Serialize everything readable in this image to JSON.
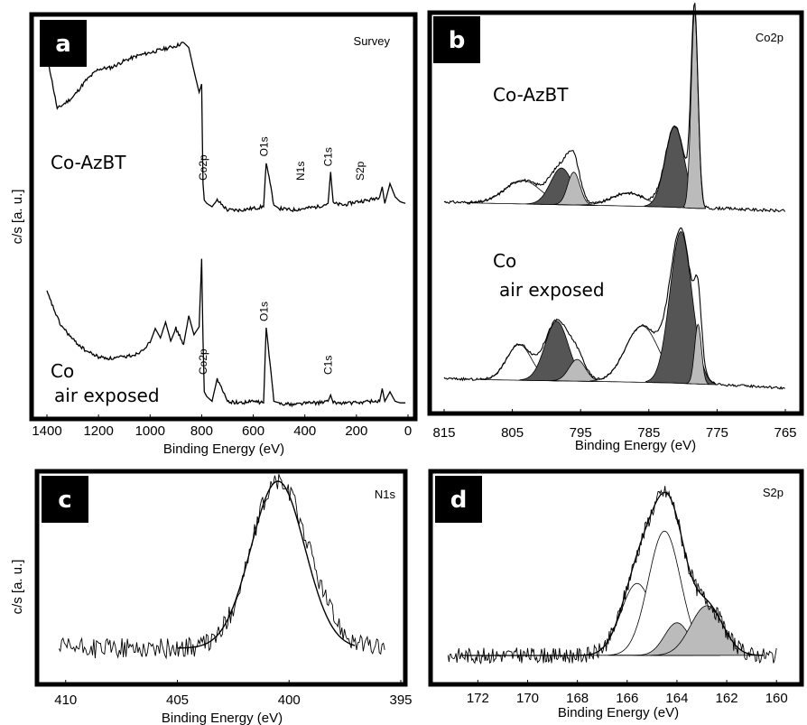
{
  "colors": {
    "frame": "#000000",
    "badge": "#000000",
    "dark_fill": "#555555",
    "light_fill": "#bbbbbb"
  },
  "chart_data": [
    {
      "panel": "a",
      "type": "line",
      "title": "Survey",
      "xlabel": "Binding Energy (eV)",
      "ylabel": "c/s [a. u.]",
      "xlim": [
        1400,
        0
      ],
      "xticks": [
        "1400",
        "1200",
        "1000",
        "800",
        "600",
        "400",
        "200",
        "0"
      ],
      "series": [
        {
          "name": "Co-AzBT",
          "x": [
            1400,
            1360,
            1300,
            1250,
            1200,
            1150,
            1100,
            1050,
            1000,
            950,
            900,
            870,
            850,
            830,
            810,
            800,
            795,
            790,
            780,
            760,
            740,
            700,
            650,
            600,
            560,
            550,
            520,
            500,
            450,
            400,
            350,
            310,
            300,
            290,
            250,
            200,
            150,
            110,
            100,
            90,
            70,
            50,
            30,
            10
          ],
          "y": [
            98,
            65,
            72,
            82,
            89,
            90,
            94,
            97,
            99,
            101,
            103,
            105,
            102,
            88,
            75,
            80,
            20,
            10,
            8,
            6,
            10,
            4,
            4,
            5,
            6,
            33,
            7,
            5,
            4,
            5,
            6,
            8,
            27,
            8,
            7,
            9,
            10,
            12,
            18,
            8,
            20,
            12,
            9,
            8
          ]
        },
        {
          "name": "Co\nair exposed",
          "x": [
            1400,
            1350,
            1300,
            1250,
            1200,
            1150,
            1100,
            1050,
            1000,
            980,
            960,
            940,
            920,
            900,
            870,
            850,
            830,
            810,
            800,
            795,
            790,
            780,
            760,
            740,
            700,
            650,
            600,
            560,
            550,
            520,
            500,
            450,
            400,
            350,
            310,
            300,
            290,
            250,
            200,
            150,
            110,
            100,
            90,
            70,
            50,
            30,
            10
          ],
          "y": [
            75,
            55,
            45,
            38,
            34,
            33,
            34,
            36,
            43,
            52,
            46,
            56,
            44,
            52,
            42,
            60,
            48,
            53,
            96,
            45,
            12,
            9,
            6,
            20,
            6,
            5,
            6,
            5,
            53,
            6,
            5,
            4,
            5,
            5,
            6,
            10,
            5,
            5,
            5,
            6,
            6,
            14,
            6,
            12,
            6,
            5,
            5
          ]
        }
      ],
      "peak_labels": [
        {
          "text": "Co2p",
          "x": 780,
          "series": 0
        },
        {
          "text": "O1s",
          "x": 545,
          "series": 0
        },
        {
          "text": "N1s",
          "x": 402,
          "series": 0
        },
        {
          "text": "C1s",
          "x": 296,
          "series": 0
        },
        {
          "text": "S2p",
          "x": 172,
          "series": 0
        },
        {
          "text": "Co2p",
          "x": 780,
          "series": 1
        },
        {
          "text": "O1s",
          "x": 545,
          "series": 1
        },
        {
          "text": "C1s",
          "x": 296,
          "series": 1
        }
      ]
    },
    {
      "panel": "b",
      "type": "line",
      "title": "Co2p",
      "xlabel": "Binding Energy (eV)",
      "ylabel": "",
      "xlim": [
        815,
        765
      ],
      "xticks": [
        "815",
        "805",
        "795",
        "785",
        "775",
        "765"
      ],
      "series": [
        {
          "name": "Co-AzBT",
          "background": [
            [
              815,
              10
            ],
            [
              810,
              9
            ],
            [
              800,
              8
            ],
            [
              790,
              7
            ],
            [
              782,
              6
            ],
            [
              778,
              5
            ],
            [
              774,
              5
            ],
            [
              770,
              4
            ],
            [
              765,
              3
            ]
          ],
          "components": [
            {
              "center": 803.5,
              "height": 18,
              "width": 2.6,
              "fill": "white"
            },
            {
              "center": 797.8,
              "height": 28,
              "width": 1.6,
              "fill": "dark"
            },
            {
              "center": 796.0,
              "height": 25,
              "width": 0.9,
              "fill": "light"
            },
            {
              "center": 788.0,
              "height": 10,
              "width": 2.4,
              "fill": "white"
            },
            {
              "center": 781.2,
              "height": 62,
              "width": 1.4,
              "fill": "dark"
            },
            {
              "center": 778.3,
              "height": 150,
              "width": 0.5,
              "fill": "light"
            }
          ]
        },
        {
          "name": "Co\nair exposed",
          "background": [
            [
              815,
              9
            ],
            [
              810,
              8
            ],
            [
              800,
              7
            ],
            [
              790,
              6
            ],
            [
              782,
              5
            ],
            [
              778,
              4
            ],
            [
              774,
              3
            ],
            [
              770,
              2
            ],
            [
              765,
              0
            ]
          ],
          "components": [
            {
              "center": 804.0,
              "height": 33,
              "width": 1.8,
              "fill": "white"
            },
            {
              "center": 798.5,
              "height": 55,
              "width": 1.7,
              "fill": "dark"
            },
            {
              "center": 795.5,
              "height": 20,
              "width": 1.2,
              "fill": "light"
            },
            {
              "center": 786.0,
              "height": 52,
              "width": 2.4,
              "fill": "white"
            },
            {
              "center": 780.3,
              "height": 140,
              "width": 1.6,
              "fill": "dark"
            },
            {
              "center": 777.8,
              "height": 55,
              "width": 0.5,
              "fill": "light"
            }
          ]
        }
      ]
    },
    {
      "panel": "c",
      "type": "line",
      "title": "N1s",
      "xlabel": "Binding Energy (eV)",
      "ylabel": "c/s [a. u.]",
      "xlim": [
        411,
        395
      ],
      "xticks": [
        "410",
        "405",
        "400",
        "395"
      ],
      "series": [
        {
          "name": "",
          "components": [
            {
              "center": 400.5,
              "height": 100,
              "width": 1.2,
              "fill": "white"
            }
          ],
          "noise": 4,
          "baseline": 0
        }
      ]
    },
    {
      "panel": "d",
      "type": "line",
      "title": "S2p",
      "xlabel": "Binding Energy (eV)",
      "ylabel": "",
      "xlim": [
        173.5,
        159.5
      ],
      "xticks": [
        "172",
        "170",
        "168",
        "166",
        "164",
        "162",
        "160"
      ],
      "series": [
        {
          "name": "",
          "components": [
            {
              "center": 165.6,
              "height": 55,
              "width": 0.65,
              "fill": "white"
            },
            {
              "center": 164.5,
              "height": 95,
              "width": 0.65,
              "fill": "white"
            },
            {
              "center": 164.0,
              "height": 25,
              "width": 0.5,
              "fill": "light"
            },
            {
              "center": 162.8,
              "height": 38,
              "width": 0.65,
              "fill": "light"
            }
          ],
          "noise": 4,
          "baseline": 0
        }
      ]
    }
  ],
  "panel_labels": [
    "a",
    "b",
    "c",
    "d"
  ],
  "sample_labels": {
    "a_top": "Co-AzBT",
    "a_bot_1": "Co",
    "a_bot_2": "air exposed",
    "b_top": "Co-AzBT",
    "b_bot_1": "Co",
    "b_bot_2": "air exposed"
  }
}
